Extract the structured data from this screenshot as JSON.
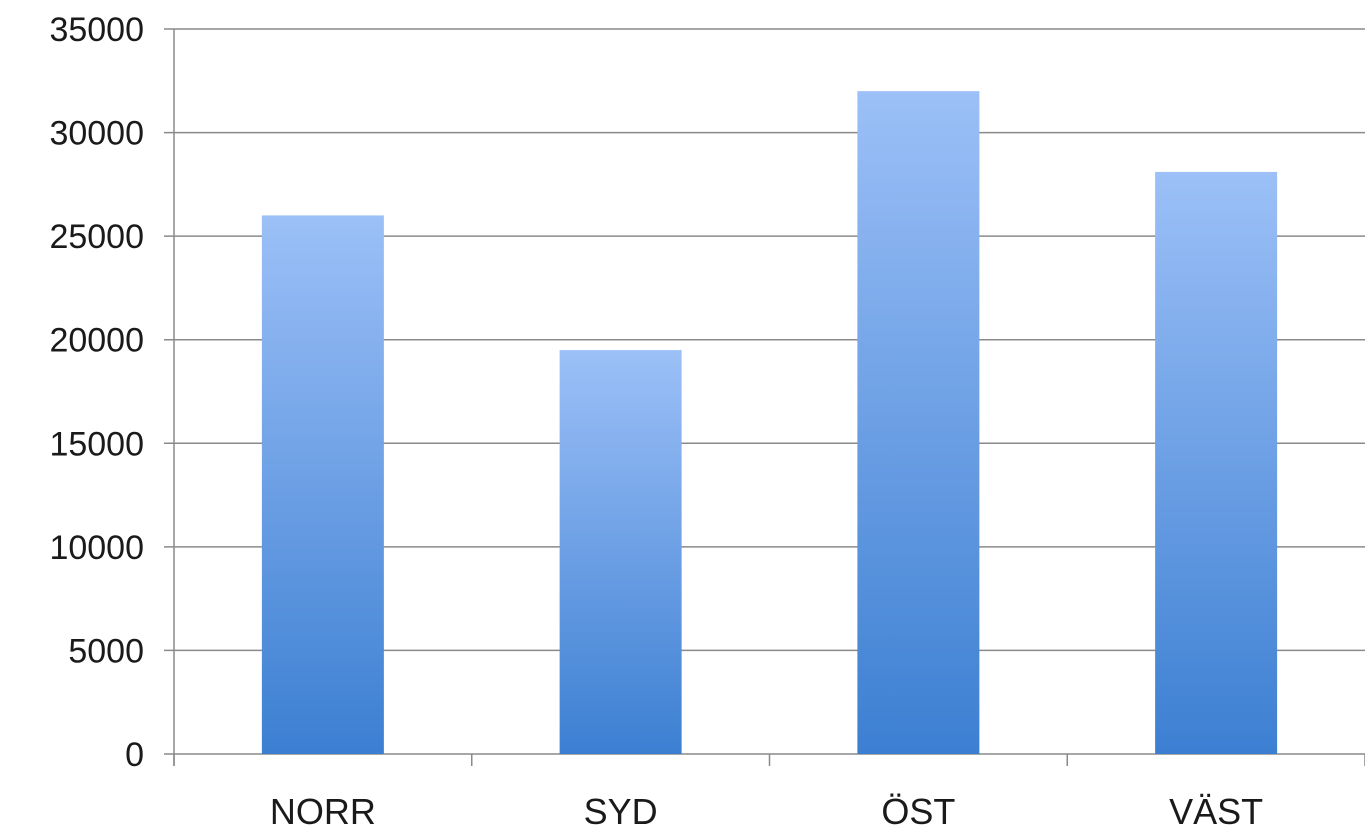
{
  "chart_data": {
    "type": "bar",
    "title": "",
    "xlabel": "",
    "ylabel": "",
    "categories": [
      "NORR",
      "SYD",
      "ÖST",
      "VÄST"
    ],
    "values": [
      26000,
      19500,
      32000,
      28100
    ],
    "ylim": [
      0,
      35000
    ],
    "yticks": [
      0,
      5000,
      10000,
      15000,
      20000,
      25000,
      30000,
      35000
    ],
    "grid": true,
    "legend": "none",
    "colors": {
      "bar_top": "#9cc0f7",
      "bar_bottom": "#3c7fd2",
      "grid": "#8a8a8a",
      "axis": "#8a8a8a"
    }
  }
}
